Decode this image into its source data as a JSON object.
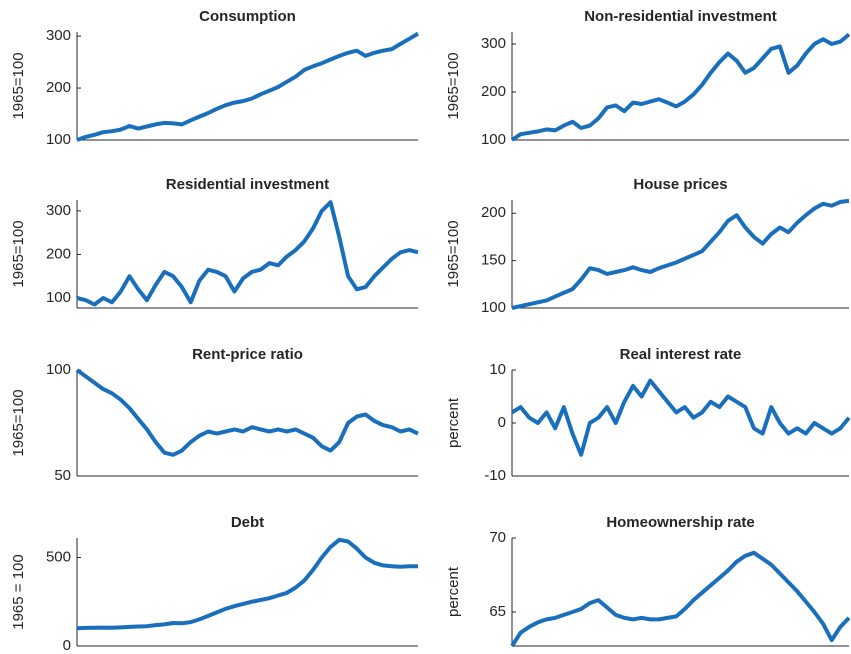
{
  "chart_data": [
    {
      "type": "line",
      "title": "Consumption",
      "ylabel": "1965=100",
      "color": "#1a6fbd",
      "ylim": [
        100,
        308
      ],
      "yticks": [
        100,
        200,
        300
      ],
      "values": [
        100,
        106,
        110,
        115,
        117,
        120,
        127,
        122,
        126,
        130,
        133,
        132,
        130,
        138,
        145,
        152,
        160,
        167,
        172,
        175,
        180,
        188,
        195,
        202,
        212,
        222,
        235,
        242,
        248,
        255,
        262,
        268,
        272,
        262,
        268,
        272,
        275,
        285,
        295,
        305
      ]
    },
    {
      "type": "line",
      "title": "Non-residential investment",
      "ylabel": "1965=100",
      "color": "#1a6fbd",
      "ylim": [
        100,
        325
      ],
      "yticks": [
        100,
        200,
        300
      ],
      "values": [
        100,
        112,
        115,
        118,
        122,
        120,
        130,
        138,
        125,
        130,
        145,
        168,
        172,
        160,
        178,
        175,
        180,
        185,
        178,
        170,
        180,
        195,
        215,
        240,
        262,
        280,
        265,
        240,
        250,
        270,
        290,
        295,
        240,
        255,
        280,
        300,
        310,
        300,
        305,
        320
      ]
    },
    {
      "type": "line",
      "title": "Residential investment",
      "ylabel": "1965=100",
      "color": "#1a6fbd",
      "ylim": [
        77,
        325
      ],
      "yticks": [
        100,
        200,
        300
      ],
      "values": [
        100,
        95,
        85,
        100,
        90,
        115,
        150,
        120,
        95,
        130,
        160,
        150,
        125,
        90,
        140,
        165,
        160,
        150,
        115,
        145,
        160,
        165,
        180,
        175,
        195,
        210,
        230,
        260,
        300,
        320,
        240,
        150,
        120,
        125,
        150,
        170,
        190,
        205,
        210,
        205
      ]
    },
    {
      "type": "line",
      "title": "House prices",
      "ylabel": "1965=100",
      "color": "#1a6fbd",
      "ylim": [
        100,
        214
      ],
      "yticks": [
        100,
        150,
        200
      ],
      "values": [
        100,
        102,
        104,
        106,
        108,
        112,
        116,
        120,
        130,
        142,
        140,
        136,
        138,
        140,
        143,
        140,
        138,
        142,
        145,
        148,
        152,
        156,
        160,
        170,
        180,
        192,
        198,
        185,
        175,
        168,
        178,
        185,
        180,
        190,
        198,
        205,
        210,
        208,
        212,
        213
      ]
    },
    {
      "type": "line",
      "title": "Rent-price ratio",
      "ylabel": "1965=100",
      "color": "#1a6fbd",
      "ylim": [
        50,
        100
      ],
      "yticks": [
        50,
        100
      ],
      "values": [
        100,
        97,
        94,
        91,
        89,
        86,
        82,
        77,
        72,
        66,
        61,
        60,
        62,
        66,
        69,
        71,
        70,
        71,
        72,
        71,
        73,
        72,
        71,
        72,
        71,
        72,
        70,
        68,
        64,
        62,
        66,
        75,
        78,
        79,
        76,
        74,
        73,
        71,
        72,
        70
      ]
    },
    {
      "type": "line",
      "title": "Real interest rate",
      "ylabel": "percent",
      "color": "#1a6fbd",
      "ylim": [
        -10,
        10
      ],
      "yticks": [
        -10,
        0,
        10
      ],
      "values": [
        2,
        3,
        1,
        0,
        2,
        -1,
        3,
        -2,
        -6,
        0,
        1,
        3,
        0,
        4,
        7,
        5,
        8,
        6,
        4,
        2,
        3,
        1,
        2,
        4,
        3,
        5,
        4,
        3,
        -1,
        -2,
        3,
        0,
        -2,
        -1,
        -2,
        0,
        -1,
        -2,
        -1,
        1
      ]
    },
    {
      "type": "line",
      "title": "Debt",
      "ylabel": "1965 = 100",
      "color": "#1a6fbd",
      "ylim": [
        0,
        610
      ],
      "yticks": [
        0,
        500
      ],
      "values": [
        100,
        102,
        103,
        104,
        103,
        105,
        108,
        110,
        112,
        118,
        122,
        130,
        128,
        135,
        150,
        170,
        190,
        210,
        225,
        238,
        250,
        260,
        270,
        285,
        300,
        330,
        370,
        430,
        500,
        560,
        600,
        590,
        550,
        500,
        470,
        455,
        450,
        448,
        450,
        450
      ]
    },
    {
      "type": "line",
      "title": "Homeownership rate",
      "ylabel": "percent",
      "color": "#1a6fbd",
      "ylim": [
        62.7,
        70
      ],
      "yticks": [
        65,
        70
      ],
      "values": [
        62.7,
        63.6,
        64.0,
        64.3,
        64.5,
        64.6,
        64.8,
        65.0,
        65.2,
        65.6,
        65.8,
        65.3,
        64.8,
        64.6,
        64.5,
        64.6,
        64.5,
        64.5,
        64.6,
        64.7,
        65.2,
        65.8,
        66.3,
        66.8,
        67.3,
        67.8,
        68.4,
        68.8,
        69.0,
        68.6,
        68.2,
        67.6,
        67.0,
        66.4,
        65.7,
        65.0,
        64.2,
        63.1,
        64.0,
        64.6
      ]
    }
  ]
}
